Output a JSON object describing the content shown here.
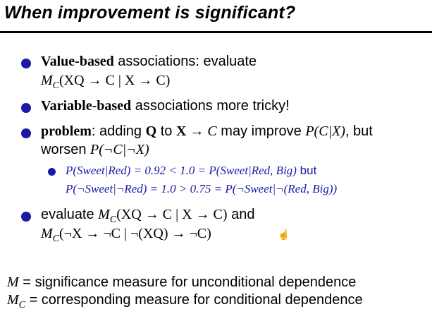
{
  "title": "When improvement is significant?",
  "b1": {
    "bold": "Value-based",
    "rest": " associations: evaluate",
    "m": "M",
    "m_sub": "C",
    "formula": "(XQ → C | X → C)"
  },
  "b2": {
    "bold": "Variable-based",
    "rest": " associations more tricky!"
  },
  "b3": {
    "bold": "problem",
    "text1": ": adding ",
    "q": "Q",
    "text2": " to ",
    "x": "X",
    "arrow": " → ",
    "c": "C",
    "text3": " may improve ",
    "p1": "P(C|X)",
    "text4": ", but",
    "text5": "worsen ",
    "p2": "P(¬C|¬X)"
  },
  "sub1": {
    "line1a": "P(Sweet|Red) = 0.92 < 1.0 = P(Sweet|Red, Big)",
    "line1b": " but",
    "line2": "P(¬Sweet|¬Red) = 1.0 > 0.75 = P(¬Sweet|¬(Red, Big))"
  },
  "b4": {
    "text1": "evaluate ",
    "m": "M",
    "m_sub": "C",
    "formula1": "(XQ → C | X → C)",
    "text2": " and",
    "m2": "M",
    "m2_sub": "C",
    "formula2": "(¬X → ¬C | ¬(XQ) → ¬C)"
  },
  "footer": {
    "l1_sym": "M",
    "l1_text": " = significance measure for unconditional dependence",
    "l2_sym": "M",
    "l2_sub": "C",
    "l2_text": " = corresponding measure for conditional dependence"
  },
  "colors": {
    "bullet": "#1a1aa6",
    "subtext": "#1a1aa6"
  }
}
